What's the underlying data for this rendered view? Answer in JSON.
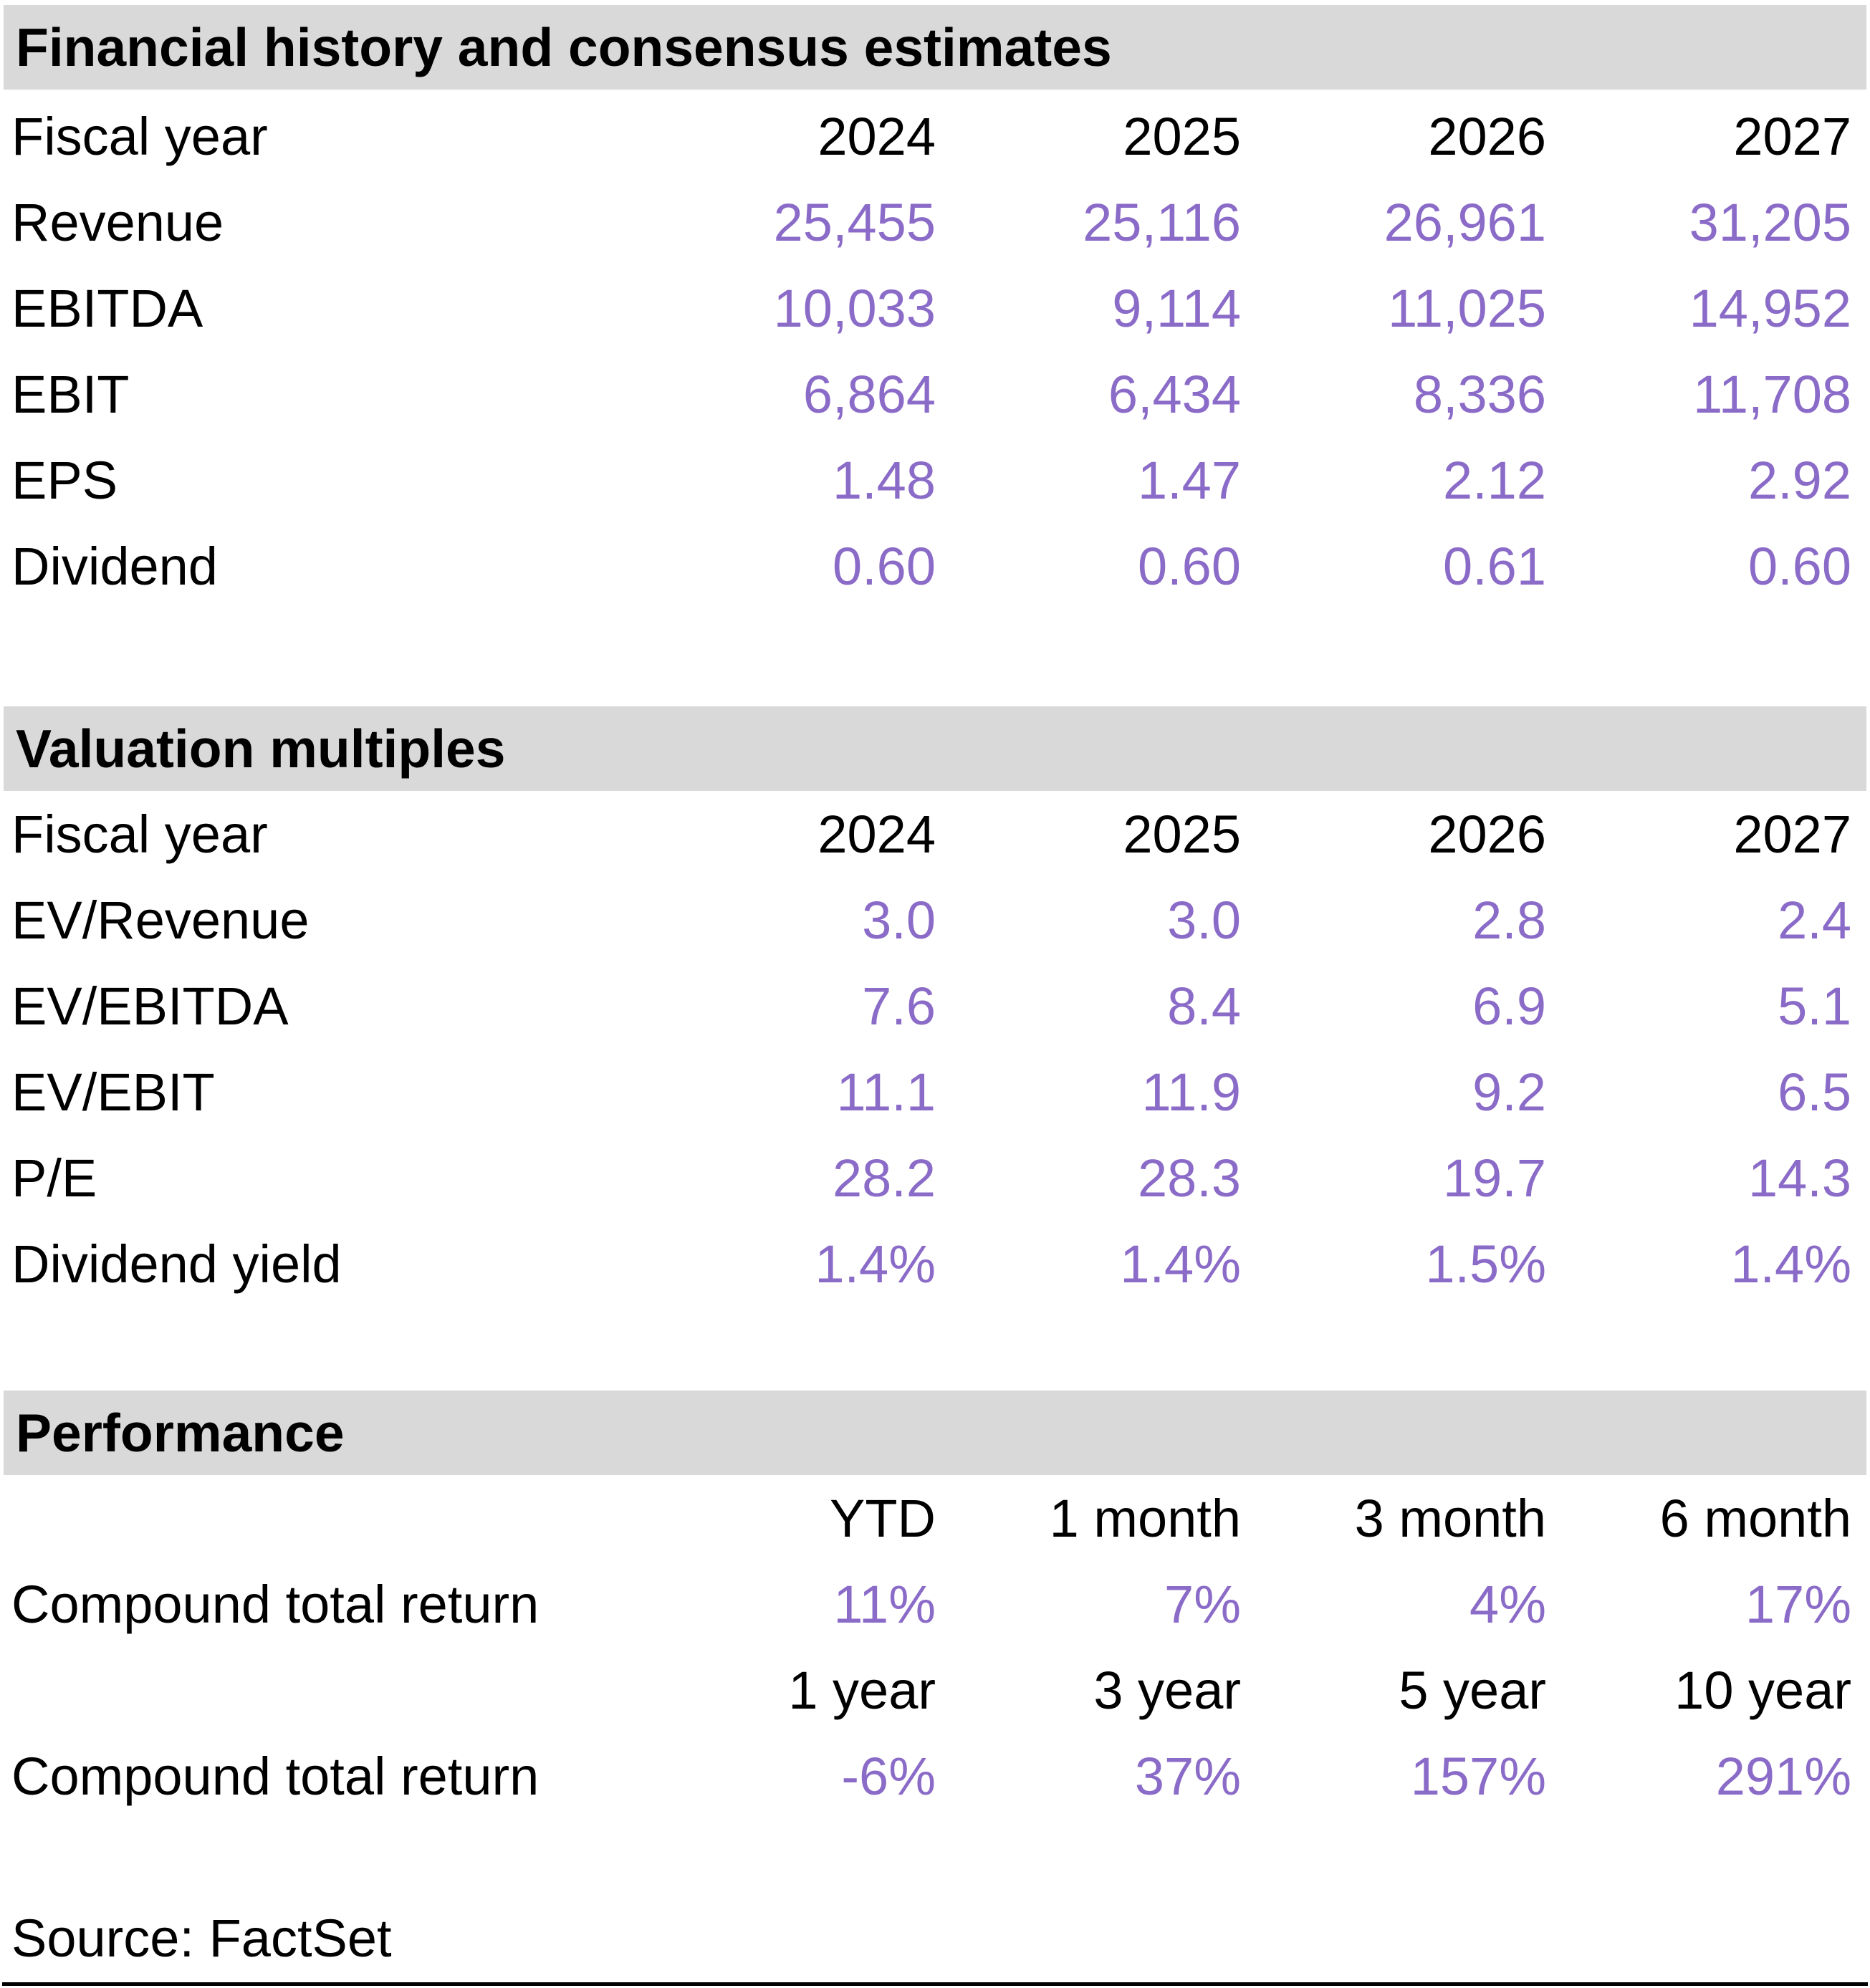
{
  "colors": {
    "accent": "#8B6BC8",
    "section_bg": "#D9D9D9",
    "text": "#000000"
  },
  "financial_history": {
    "title": "Financial history and consensus estimates",
    "header": {
      "label": "Fiscal year",
      "cols": [
        "2024",
        "2025",
        "2026",
        "2027"
      ]
    },
    "rows": [
      {
        "label": "Revenue",
        "values": [
          "25,455",
          "25,116",
          "26,961",
          "31,205"
        ]
      },
      {
        "label": "EBITDA",
        "values": [
          "10,033",
          "9,114",
          "11,025",
          "14,952"
        ]
      },
      {
        "label": "EBIT",
        "values": [
          "6,864",
          "6,434",
          "8,336",
          "11,708"
        ]
      },
      {
        "label": "EPS",
        "values": [
          "1.48",
          "1.47",
          "2.12",
          "2.92"
        ]
      },
      {
        "label": "Dividend",
        "values": [
          "0.60",
          "0.60",
          "0.61",
          "0.60"
        ]
      }
    ]
  },
  "valuation_multiples": {
    "title": "Valuation multiples",
    "header": {
      "label": "Fiscal year",
      "cols": [
        "2024",
        "2025",
        "2026",
        "2027"
      ]
    },
    "rows": [
      {
        "label": "EV/Revenue",
        "values": [
          "3.0",
          "3.0",
          "2.8",
          "2.4"
        ]
      },
      {
        "label": "EV/EBITDA",
        "values": [
          "7.6",
          "8.4",
          "6.9",
          "5.1"
        ]
      },
      {
        "label": "EV/EBIT",
        "values": [
          "11.1",
          "11.9",
          "9.2",
          "6.5"
        ]
      },
      {
        "label": "P/E",
        "values": [
          "28.2",
          "28.3",
          "19.7",
          "14.3"
        ]
      },
      {
        "label": "Dividend yield",
        "values": [
          "1.4%",
          "1.4%",
          "1.5%",
          "1.4%"
        ]
      }
    ]
  },
  "performance": {
    "title": "Performance",
    "groups": [
      {
        "header": {
          "label": "",
          "cols": [
            "YTD",
            "1 month",
            "3 month",
            "6 month"
          ]
        },
        "row": {
          "label": "Compound total return",
          "values": [
            "11%",
            "7%",
            "4%",
            "17%"
          ]
        }
      },
      {
        "header": {
          "label": "",
          "cols": [
            "1 year",
            "3 year",
            "5 year",
            "10 year"
          ]
        },
        "row": {
          "label": "Compound total return",
          "values": [
            "-6%",
            "37%",
            "157%",
            "291%"
          ]
        }
      }
    ]
  },
  "footer": {
    "source": "Source: FactSet"
  }
}
